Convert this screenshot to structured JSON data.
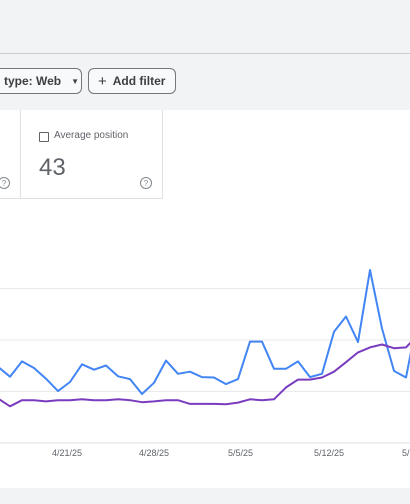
{
  "filters": {
    "type_label": "type: Web",
    "add_filter_label": "Add filter",
    "add_icon": "plus-icon",
    "caret_icon": "caret-down-icon"
  },
  "metrics": {
    "average_position": {
      "label": "Average position",
      "value": "43",
      "checked": false
    }
  },
  "chart_data": {
    "type": "line",
    "x_labels": [
      "4/21/25",
      "4/28/25",
      "5/5/25",
      "5/12/25",
      "5/"
    ],
    "series": [
      {
        "color": "#4285f4",
        "values": [
          18.5,
          16.1,
          19.8,
          18.2,
          15.6,
          12.6,
          14.8,
          19.1,
          17.8,
          18.8,
          16.2,
          15.5,
          11.9,
          14.6,
          20.0,
          16.8,
          17.3,
          16.0,
          15.9,
          14.3,
          15.5,
          24.6,
          24.6,
          18.0,
          18.0,
          19.8,
          16.0,
          16.8,
          27.0,
          30.7,
          24.5,
          42.0,
          27.8,
          17.5,
          15.9,
          30.7
        ]
      },
      {
        "color": "#7a3cbf",
        "values": [
          10.8,
          8.9,
          10.4,
          10.4,
          10.1,
          10.4,
          10.4,
          10.6,
          10.4,
          10.4,
          10.6,
          10.4,
          9.9,
          10.1,
          10.4,
          10.4,
          9.5,
          9.5,
          9.5,
          9.4,
          9.8,
          10.6,
          10.4,
          10.6,
          13.5,
          15.4,
          15.4,
          15.9,
          17.3,
          19.6,
          22.0,
          23.2,
          23.9,
          23.0,
          23.2,
          26.2
        ]
      }
    ]
  }
}
